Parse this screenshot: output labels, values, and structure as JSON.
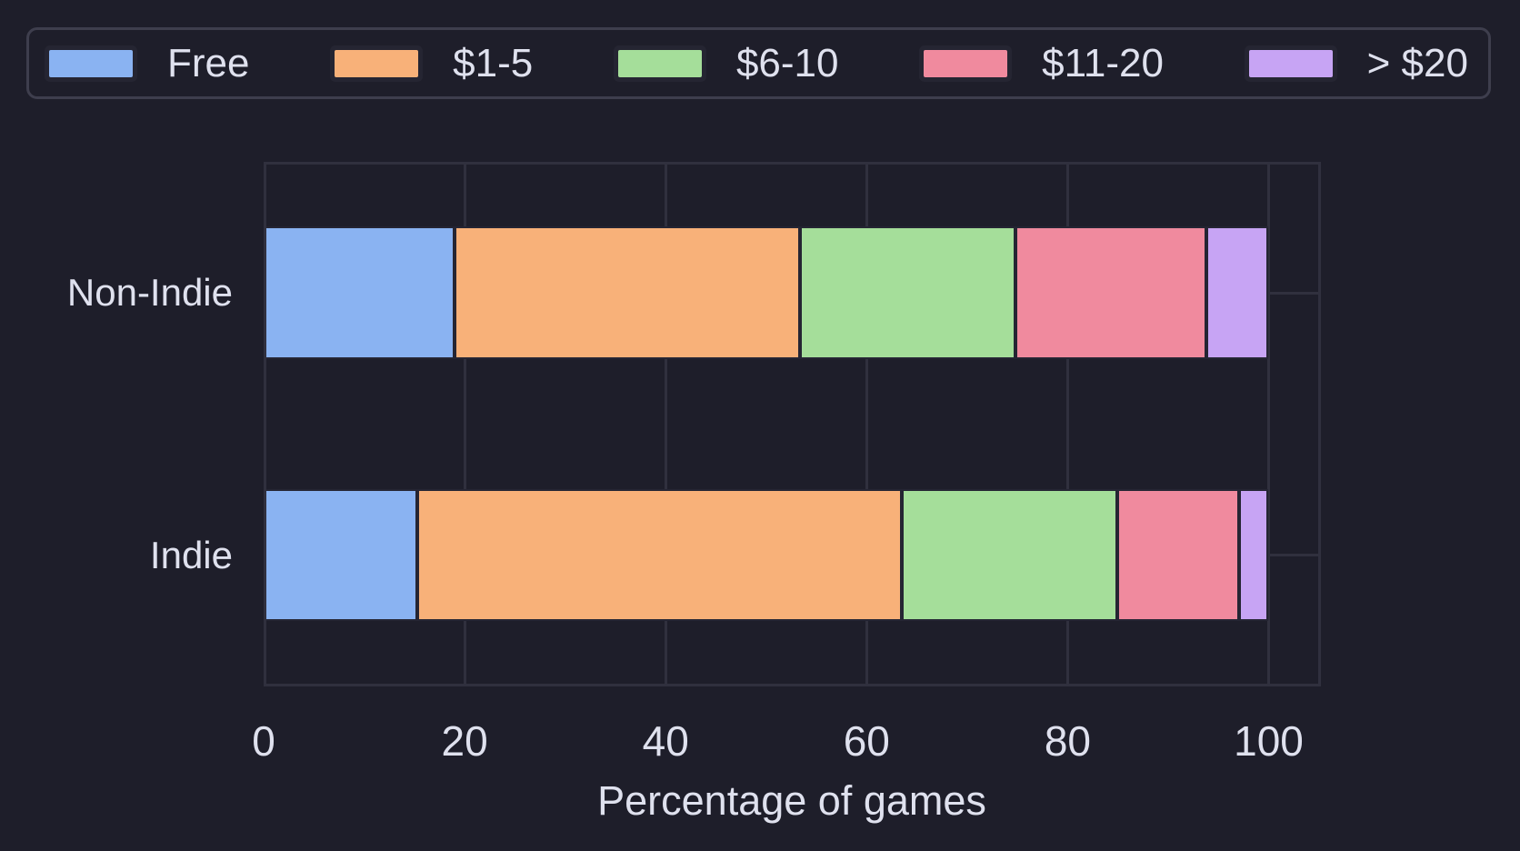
{
  "chart_data": {
    "type": "bar",
    "orientation": "horizontal",
    "stacked": true,
    "title": "",
    "xlabel": "Percentage of games",
    "ylabel": "",
    "categories": [
      "Non-Indie",
      "Indie"
    ],
    "series": [
      {
        "key": "free",
        "name": "Free",
        "color": "#8ab3f2",
        "values": [
          19.0,
          15.3
        ]
      },
      {
        "key": "1-5",
        "name": "$1-5",
        "color": "#f8b179",
        "values": [
          34.4,
          48.2
        ]
      },
      {
        "key": "6-10",
        "name": "$6-10",
        "color": "#a5de9a",
        "values": [
          21.4,
          21.4
        ]
      },
      {
        "key": "11-20",
        "name": "$11-20",
        "color": "#f08a9e",
        "values": [
          19.0,
          12.2
        ]
      },
      {
        "key": "gt-20",
        "name": "> $20",
        "color": "#c7a4f4",
        "values": [
          6.2,
          2.9
        ]
      }
    ],
    "xlim": [
      0,
      105.2
    ],
    "xticks": [
      0,
      20,
      40,
      60,
      80,
      100
    ],
    "grid": true,
    "legend_position": "top"
  },
  "ui_colors": {
    "background": "#1e1e2a",
    "grid_line": "#30303e",
    "text": "#dfe1ee",
    "legend_border": "#3e3e4d",
    "segment_edge": "#252533"
  }
}
